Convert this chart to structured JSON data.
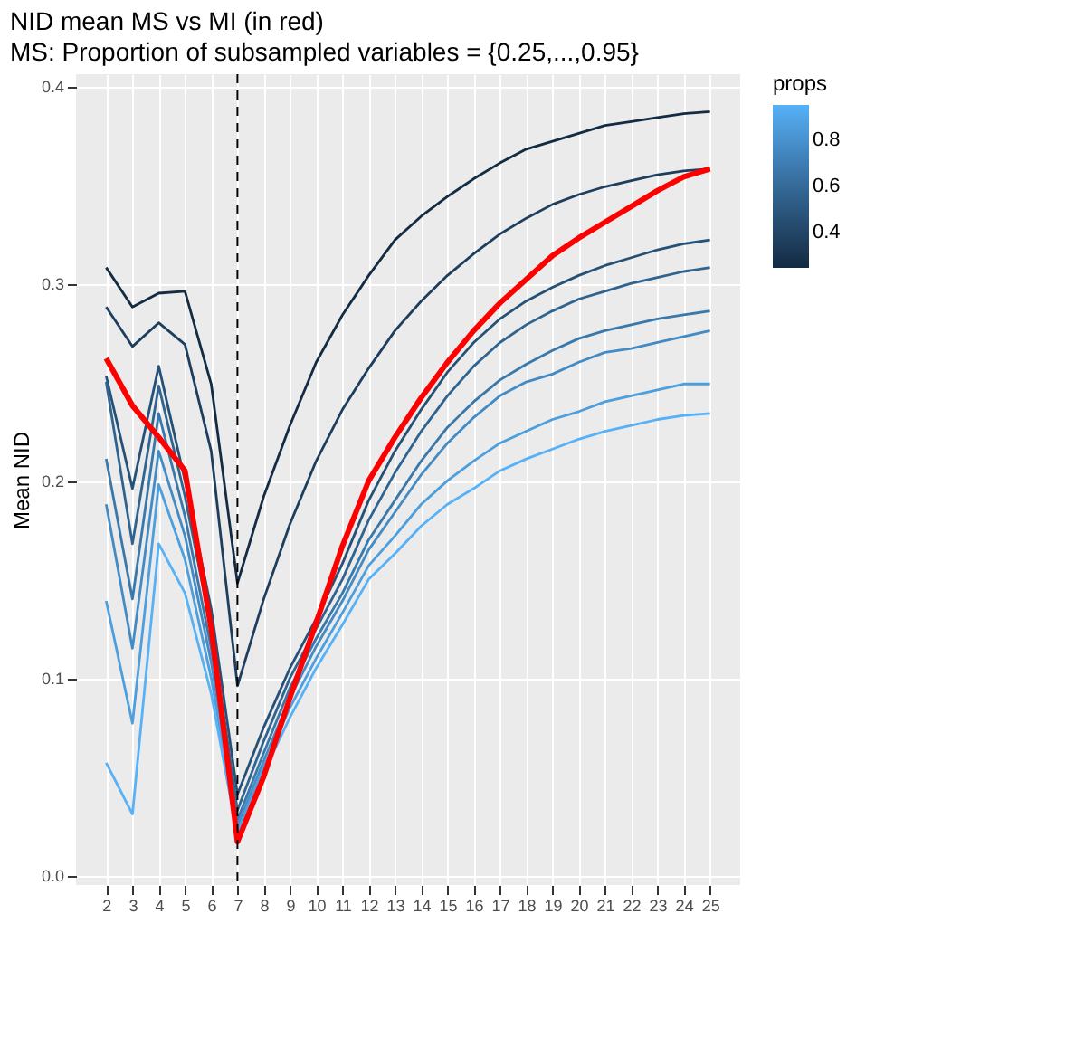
{
  "chart_data": {
    "type": "line",
    "title": "NID mean MS vs MI (in red)",
    "subtitle": "MS: Proportion of subsampled variables = {0.25,...,0.95}",
    "ylabel": "Mean NID",
    "x": [
      2,
      3,
      4,
      5,
      6,
      7,
      8,
      9,
      10,
      11,
      12,
      13,
      14,
      15,
      16,
      17,
      18,
      19,
      20,
      21,
      22,
      23,
      24,
      25
    ],
    "xlim": [
      0.85,
      26.15
    ],
    "xticks": [
      2,
      3,
      4,
      5,
      6,
      7,
      8,
      9,
      10,
      11,
      12,
      13,
      14,
      15,
      16,
      17,
      18,
      19,
      20,
      21,
      22,
      23,
      24,
      25
    ],
    "ylim": [
      -0.005,
      0.406
    ],
    "yticks": [
      {
        "value": 0,
        "label": "0.0"
      },
      0.1,
      0.2,
      0.3,
      0.4
    ],
    "grid": true,
    "clabel": "props",
    "clim": [
      0.25,
      0.95
    ],
    "cticks": [
      0.4,
      0.6,
      0.8
    ],
    "ref_lines": [
      {
        "axis": "x",
        "value": 7,
        "label": null,
        "color": "#000000",
        "line_style": "dashed"
      }
    ],
    "series": [
      {
        "color": "#132b43",
        "values": [
          0.308,
          0.288,
          0.295,
          0.296,
          0.249,
          0.148,
          0.192,
          0.228,
          0.26,
          0.284,
          0.304,
          0.322,
          0.334,
          0.344,
          0.353,
          0.361,
          0.368,
          0.372,
          0.376,
          0.38,
          0.382,
          0.384,
          0.386,
          0.387
        ]
      },
      {
        "color": "#1d3e5d",
        "values": [
          0.288,
          0.268,
          0.28,
          0.269,
          0.215,
          0.096,
          0.14,
          0.178,
          0.21,
          0.236,
          0.257,
          0.276,
          0.291,
          0.304,
          0.315,
          0.325,
          0.333,
          0.34,
          0.345,
          0.349,
          0.352,
          0.355,
          0.357,
          0.358
        ]
      },
      {
        "color": "#265176",
        "values": [
          0.253,
          0.196,
          0.258,
          0.2,
          0.135,
          0.041,
          0.075,
          0.105,
          0.13,
          0.158,
          0.19,
          0.215,
          0.236,
          0.255,
          0.27,
          0.282,
          0.291,
          0.298,
          0.304,
          0.309,
          0.313,
          0.317,
          0.32,
          0.322
        ]
      },
      {
        "color": "#306490",
        "values": [
          0.25,
          0.168,
          0.248,
          0.192,
          0.125,
          0.033,
          0.068,
          0.1,
          0.125,
          0.15,
          0.18,
          0.204,
          0.225,
          0.243,
          0.258,
          0.27,
          0.279,
          0.286,
          0.292,
          0.296,
          0.3,
          0.303,
          0.306,
          0.308
        ]
      },
      {
        "color": "#3978aa",
        "values": [
          0.211,
          0.14,
          0.234,
          0.182,
          0.115,
          0.028,
          0.062,
          0.095,
          0.12,
          0.143,
          0.17,
          0.19,
          0.21,
          0.227,
          0.24,
          0.251,
          0.259,
          0.266,
          0.272,
          0.276,
          0.279,
          0.282,
          0.284,
          0.286
        ]
      },
      {
        "color": "#438bc4",
        "values": [
          0.188,
          0.115,
          0.215,
          0.172,
          0.108,
          0.025,
          0.058,
          0.09,
          0.116,
          0.139,
          0.165,
          0.184,
          0.203,
          0.219,
          0.232,
          0.243,
          0.25,
          0.254,
          0.26,
          0.265,
          0.267,
          0.27,
          0.273,
          0.276
        ]
      },
      {
        "color": "#4c9edd",
        "values": [
          0.139,
          0.077,
          0.198,
          0.16,
          0.1,
          0.022,
          0.055,
          0.085,
          0.11,
          0.133,
          0.157,
          0.172,
          0.188,
          0.2,
          0.21,
          0.219,
          0.225,
          0.231,
          0.235,
          0.24,
          0.243,
          0.246,
          0.249,
          0.249
        ]
      },
      {
        "color": "#56b1f7",
        "values": [
          0.057,
          0.031,
          0.168,
          0.143,
          0.092,
          0.02,
          0.052,
          0.08,
          0.105,
          0.127,
          0.15,
          0.163,
          0.177,
          0.188,
          0.196,
          0.205,
          0.211,
          0.216,
          0.221,
          0.225,
          0.228,
          0.231,
          0.233,
          0.234
        ]
      },
      {
        "color": "#ff0000",
        "values": [
          0.262,
          0.238,
          0.222,
          0.205,
          0.125,
          0.017,
          0.05,
          0.09,
          0.128,
          0.167,
          0.2,
          0.222,
          0.242,
          0.26,
          0.276,
          0.29,
          0.302,
          0.314,
          0.323,
          0.331,
          0.339,
          0.347,
          0.354,
          0.358
        ]
      }
    ]
  }
}
